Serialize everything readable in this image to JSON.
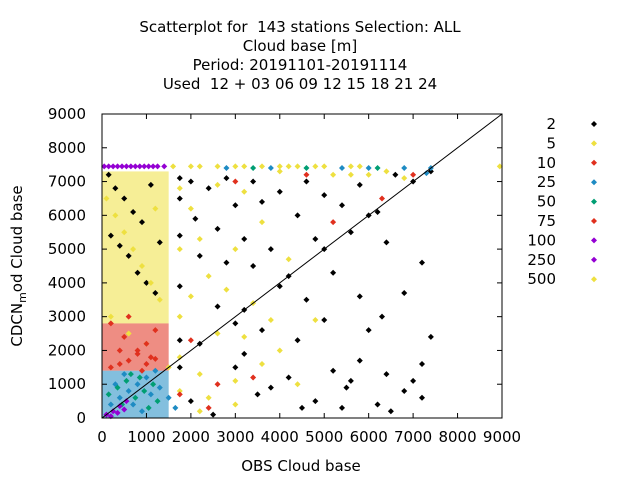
{
  "title_lines": [
    "Scatterplot for  143 stations Selection: ALL",
    "Cloud base [m]",
    "Period: 20191101-20191114",
    "Used  12 + 03 06 09 12 15 18 21 24"
  ],
  "chart_data": {
    "type": "scatter",
    "xlabel": "OBS Cloud base",
    "ylabel": "CDCN",
    "ylabel_sub": "m",
    "ylabel_rest": "od Cloud base",
    "xlim": [
      0,
      9000
    ],
    "ylim": [
      0,
      9000
    ],
    "xticks": [
      "0",
      "1000",
      "2000",
      "3000",
      "4000",
      "5000",
      "6000",
      "7000",
      "8000",
      "9000"
    ],
    "yticks": [
      "0",
      "1000",
      "2000",
      "3000",
      "4000",
      "5000",
      "6000",
      "7000",
      "8000",
      "9000"
    ],
    "reference_line": "y = x",
    "legend_placement": "right",
    "series": [
      {
        "name": "2",
        "color": "#000000",
        "points": [
          [
            150,
            7200
          ],
          [
            300,
            6800
          ],
          [
            500,
            6500
          ],
          [
            700,
            6100
          ],
          [
            900,
            5800
          ],
          [
            1100,
            6900
          ],
          [
            1300,
            5200
          ],
          [
            200,
            5400
          ],
          [
            400,
            5100
          ],
          [
            600,
            4800
          ],
          [
            800,
            4300
          ],
          [
            1000,
            4000
          ],
          [
            1200,
            3700
          ],
          [
            1750,
            7100
          ],
          [
            1750,
            6500
          ],
          [
            1750,
            5400
          ],
          [
            1750,
            3900
          ],
          [
            1750,
            2300
          ],
          [
            1750,
            1500
          ],
          [
            2000,
            7000
          ],
          [
            2100,
            5900
          ],
          [
            2200,
            4800
          ],
          [
            2400,
            6800
          ],
          [
            2600,
            5600
          ],
          [
            2600,
            3300
          ],
          [
            2800,
            7100
          ],
          [
            2800,
            4600
          ],
          [
            3000,
            6300
          ],
          [
            3000,
            2800
          ],
          [
            3200,
            5300
          ],
          [
            3200,
            1900
          ],
          [
            3400,
            7000
          ],
          [
            3400,
            4500
          ],
          [
            3600,
            6400
          ],
          [
            3600,
            2600
          ],
          [
            3800,
            5000
          ],
          [
            3800,
            900
          ],
          [
            4000,
            6700
          ],
          [
            4000,
            3900
          ],
          [
            4200,
            1200
          ],
          [
            4400,
            6000
          ],
          [
            4400,
            2300
          ],
          [
            4600,
            7000
          ],
          [
            4600,
            3500
          ],
          [
            4800,
            5300
          ],
          [
            4800,
            500
          ],
          [
            5000,
            6600
          ],
          [
            5000,
            2900
          ],
          [
            5200,
            4300
          ],
          [
            5200,
            1400
          ],
          [
            5400,
            6300
          ],
          [
            5400,
            300
          ],
          [
            5600,
            5500
          ],
          [
            5600,
            1100
          ],
          [
            5800,
            6900
          ],
          [
            5800,
            3600
          ],
          [
            6000,
            2600
          ],
          [
            6200,
            6100
          ],
          [
            6200,
            400
          ],
          [
            6400,
            5200
          ],
          [
            6400,
            1300
          ],
          [
            6600,
            7200
          ],
          [
            6800,
            3700
          ],
          [
            6800,
            800
          ],
          [
            7000,
            1100
          ],
          [
            7200,
            4600
          ],
          [
            7200,
            600
          ],
          [
            7400,
            2400
          ],
          [
            7400,
            7300
          ],
          [
            5000,
            5000
          ],
          [
            4200,
            4200
          ],
          [
            3200,
            3200
          ],
          [
            2200,
            2200
          ],
          [
            6000,
            6000
          ],
          [
            7000,
            7000
          ],
          [
            2500,
            100
          ],
          [
            3500,
            700
          ],
          [
            4500,
            300
          ],
          [
            5500,
            900
          ],
          [
            6500,
            200
          ],
          [
            2000,
            500
          ],
          [
            3000,
            1500
          ],
          [
            5800,
            1700
          ],
          [
            6300,
            3000
          ],
          [
            7200,
            1600
          ]
        ]
      },
      {
        "name": "5",
        "color": "#eee040",
        "points": [
          [
            100,
            6500
          ],
          [
            300,
            6000
          ],
          [
            500,
            5500
          ],
          [
            700,
            5000
          ],
          [
            900,
            4500
          ],
          [
            1100,
            4000
          ],
          [
            1300,
            3500
          ],
          [
            200,
            3000
          ],
          [
            600,
            2500
          ],
          [
            1000,
            2200
          ],
          [
            1200,
            6200
          ],
          [
            1750,
            6800
          ],
          [
            1750,
            5000
          ],
          [
            1750,
            3000
          ],
          [
            1750,
            1800
          ],
          [
            1750,
            800
          ],
          [
            2000,
            6200
          ],
          [
            2000,
            3600
          ],
          [
            2200,
            5300
          ],
          [
            2200,
            1300
          ],
          [
            2400,
            4200
          ],
          [
            2400,
            600
          ],
          [
            2600,
            6900
          ],
          [
            2600,
            2500
          ],
          [
            2800,
            3800
          ],
          [
            3000,
            5000
          ],
          [
            3000,
            1100
          ],
          [
            3200,
            6700
          ],
          [
            3200,
            2400
          ],
          [
            3400,
            3400
          ],
          [
            3600,
            1600
          ],
          [
            3600,
            5800
          ],
          [
            3800,
            2900
          ],
          [
            4000,
            7300
          ],
          [
            4000,
            2000
          ],
          [
            4200,
            4700
          ],
          [
            4400,
            1000
          ],
          [
            4800,
            2900
          ],
          [
            5200,
            7200
          ],
          [
            5600,
            7200
          ],
          [
            6000,
            7200
          ],
          [
            6400,
            7300
          ],
          [
            6800,
            7100
          ],
          [
            8950,
            7450
          ],
          [
            2200,
            200
          ],
          [
            3000,
            400
          ],
          [
            1500,
            1500
          ]
        ]
      },
      {
        "name": "10",
        "color": "#e0301e",
        "points": [
          [
            200,
            2800
          ],
          [
            500,
            2400
          ],
          [
            800,
            2000
          ],
          [
            1100,
            1800
          ],
          [
            400,
            1600
          ],
          [
            900,
            1400
          ],
          [
            1200,
            2600
          ],
          [
            600,
            3000
          ],
          [
            1000,
            2200
          ],
          [
            2000,
            2300
          ],
          [
            2600,
            1000
          ],
          [
            3400,
            1200
          ],
          [
            3000,
            7000
          ],
          [
            4600,
            7200
          ],
          [
            5200,
            5800
          ],
          [
            6300,
            6500
          ],
          [
            7000,
            7200
          ],
          [
            1750,
            700
          ],
          [
            2400,
            300
          ]
        ]
      },
      {
        "name": "25",
        "color": "#1e8bc3",
        "points": [
          [
            200,
            400
          ],
          [
            400,
            600
          ],
          [
            600,
            800
          ],
          [
            800,
            1000
          ],
          [
            1000,
            1200
          ],
          [
            1200,
            1400
          ],
          [
            300,
            1000
          ],
          [
            700,
            400
          ],
          [
            1100,
            700
          ],
          [
            500,
            1300
          ],
          [
            900,
            200
          ],
          [
            1300,
            900
          ],
          [
            1500,
            600
          ],
          [
            1650,
            300
          ],
          [
            5400,
            7400
          ],
          [
            6000,
            7400
          ],
          [
            6800,
            7400
          ],
          [
            7400,
            7400
          ],
          [
            3800,
            7400
          ],
          [
            2800,
            7400
          ],
          [
            7300,
            7250
          ]
        ]
      },
      {
        "name": "50",
        "color": "#009e73",
        "points": [
          [
            150,
            700
          ],
          [
            350,
            900
          ],
          [
            550,
            1100
          ],
          [
            750,
            600
          ],
          [
            950,
            800
          ],
          [
            1150,
            1000
          ],
          [
            450,
            400
          ],
          [
            850,
            1200
          ],
          [
            1250,
            500
          ],
          [
            650,
            1300
          ],
          [
            1050,
            300
          ],
          [
            3400,
            7400
          ],
          [
            4600,
            7400
          ],
          [
            6200,
            7400
          ]
        ]
      },
      {
        "name": "75",
        "color": "#e0301e",
        "points": [
          [
            200,
            1500
          ],
          [
            600,
            1700
          ],
          [
            1000,
            1600
          ],
          [
            400,
            2000
          ],
          [
            800,
            1900
          ],
          [
            1200,
            1750
          ]
        ]
      },
      {
        "name": "100",
        "color": "#9400d3",
        "points": [
          [
            100,
            100
          ],
          [
            250,
            200
          ],
          [
            400,
            350
          ],
          [
            550,
            500
          ],
          [
            200,
            50
          ],
          [
            350,
            150
          ],
          [
            500,
            250
          ]
        ]
      },
      {
        "name": "250",
        "color": "#9400d3",
        "points": [
          [
            50,
            7450
          ],
          [
            250,
            7450
          ],
          [
            450,
            7450
          ],
          [
            650,
            7450
          ],
          [
            850,
            7450
          ],
          [
            1050,
            7450
          ],
          [
            1250,
            7450
          ],
          [
            1400,
            7450
          ],
          [
            150,
            7450
          ],
          [
            350,
            7450
          ],
          [
            550,
            7450
          ],
          [
            750,
            7450
          ],
          [
            950,
            7450
          ],
          [
            1150,
            7450
          ]
        ]
      },
      {
        "name": "500",
        "color": "#eee040",
        "points": [
          [
            1600,
            7450
          ],
          [
            2000,
            7450
          ],
          [
            2200,
            7450
          ],
          [
            2600,
            7450
          ],
          [
            3000,
            7450
          ],
          [
            3200,
            7450
          ],
          [
            3600,
            7450
          ],
          [
            4000,
            7450
          ],
          [
            4200,
            7450
          ],
          [
            4400,
            7450
          ],
          [
            4800,
            7450
          ],
          [
            5000,
            7450
          ],
          [
            5600,
            7450
          ],
          [
            5800,
            7450
          ]
        ]
      }
    ]
  }
}
